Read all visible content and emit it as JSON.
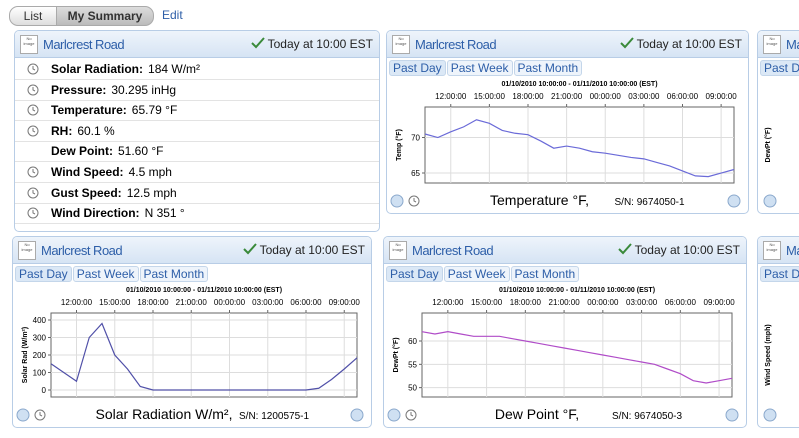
{
  "nav": {
    "tabs": [
      "List",
      "My Summary"
    ],
    "edit": "Edit"
  },
  "summary": {
    "title": "Marlcrest Road",
    "icon": "No image",
    "time": "Today at 10:00 EST",
    "rows": [
      {
        "label": "Solar Radiation:",
        "value": "184 W/m²"
      },
      {
        "label": "Pressure:",
        "value": "30.295 inHg"
      },
      {
        "label": "Temperature:",
        "value": "65.79 °F"
      },
      {
        "label": "RH:",
        "value": "60.1 %"
      },
      {
        "label": "Dew Point:",
        "value": "51.60 °F"
      },
      {
        "label": "Wind Speed:",
        "value": "4.5 mph"
      },
      {
        "label": "Gust Speed:",
        "value": "12.5 mph"
      },
      {
        "label": "Wind Direction:",
        "value": "N 351 °"
      }
    ]
  },
  "charts": [
    {
      "title": "Marlcrest Road",
      "icon": "No image",
      "time": "Today at 10:00 EST",
      "tabs": [
        "Past Day",
        "Past Week",
        "Past Month"
      ],
      "caption": "Temperature °F,",
      "serial": "S/N: 9674050-1",
      "chart_data": {
        "type": "line",
        "title": "01/10/2010 10:00:00  -  01/11/2010 10:00:00 (EST)",
        "ylabel": "Temp (°F)",
        "color": "#6a6ad8",
        "grid": true,
        "x": [
          0,
          1,
          2,
          3,
          4,
          5,
          6,
          7,
          8,
          9,
          10,
          11,
          12,
          13,
          14,
          15,
          16,
          17,
          18,
          19,
          20,
          21,
          22,
          23,
          24
        ],
        "values": [
          70.5,
          70,
          70.8,
          71.5,
          72.5,
          72,
          71,
          70.6,
          70.4,
          69.5,
          68.5,
          68.8,
          68.5,
          68,
          67.8,
          67.5,
          67.2,
          67,
          66.5,
          66,
          65.3,
          64.6,
          64.5,
          65,
          65.5
        ],
        "xlim": [
          0,
          24
        ],
        "xticks": [
          {
            "value": 2,
            "label": "12:00:00"
          },
          {
            "value": 5,
            "label": "15:00:00"
          },
          {
            "value": 8,
            "label": "18:00:00"
          },
          {
            "value": 11,
            "label": "21:00:00"
          },
          {
            "value": 14,
            "label": "00:00:00"
          },
          {
            "value": 17,
            "label": "03:00:00"
          },
          {
            "value": 20,
            "label": "06:00:00"
          },
          {
            "value": 23,
            "label": "09:00:00"
          }
        ],
        "ylim": [
          63.6,
          74.3
        ],
        "yticks": [
          65,
          70
        ]
      }
    },
    {
      "title": "Marlcrest Road",
      "icon": "No image",
      "time": "Today at 10:00 EST",
      "tabs": [
        "Past Day",
        "Past Week",
        "Past Month"
      ],
      "caption": "Solar Radiation W/m²,",
      "serial": "S/N: 1200575-1",
      "chart_data": {
        "type": "line",
        "title": "01/10/2010 10:00:00  -  01/11/2010 10:00:00 (EST)",
        "ylabel": "Solar Rad (W/m²)",
        "color": "#5050a8",
        "grid": true,
        "x": [
          0,
          1,
          2,
          3,
          4,
          5,
          6,
          7,
          8,
          9,
          10,
          11,
          12,
          13,
          14,
          15,
          16,
          17,
          18,
          19,
          20,
          21,
          22,
          23,
          24
        ],
        "values": [
          150,
          100,
          50,
          300,
          380,
          200,
          120,
          20,
          0,
          0,
          0,
          0,
          0,
          0,
          0,
          0,
          0,
          0,
          0,
          0,
          0,
          10,
          60,
          120,
          184
        ],
        "xlim": [
          0,
          24
        ],
        "xticks": [
          {
            "value": 2,
            "label": "12:00:00"
          },
          {
            "value": 5,
            "label": "15:00:00"
          },
          {
            "value": 8,
            "label": "18:00:00"
          },
          {
            "value": 11,
            "label": "21:00:00"
          },
          {
            "value": 14,
            "label": "00:00:00"
          },
          {
            "value": 17,
            "label": "03:00:00"
          },
          {
            "value": 20,
            "label": "06:00:00"
          },
          {
            "value": 23,
            "label": "09:00:00"
          }
        ],
        "ylim": [
          -40,
          440
        ],
        "yticks": [
          0,
          100,
          200,
          300,
          400
        ]
      }
    },
    {
      "title": "Marlcrest Road",
      "icon": "No image",
      "time": "Today at 10:00 EST",
      "tabs": [
        "Past Day",
        "Past Week",
        "Past Month"
      ],
      "caption": "Dew Point °F,",
      "serial": "S/N: 9674050-3",
      "chart_data": {
        "type": "line",
        "title": "01/10/2010 10:00:00  -  01/11/2010 10:00:00 (EST)",
        "ylabel": "DewPt (°F)",
        "color": "#b04cc8",
        "grid": true,
        "x": [
          0,
          1,
          2,
          3,
          4,
          5,
          6,
          7,
          8,
          9,
          10,
          11,
          12,
          13,
          14,
          15,
          16,
          17,
          18,
          19,
          20,
          21,
          22,
          23,
          24
        ],
        "values": [
          62,
          61.5,
          62,
          61.5,
          61,
          61,
          61,
          60.5,
          60,
          59.5,
          59,
          58.5,
          58,
          57.5,
          57,
          56.5,
          56,
          55.5,
          55,
          54,
          53,
          51.5,
          51,
          51.5,
          52
        ],
        "xlim": [
          0,
          24
        ],
        "xticks": [
          {
            "value": 2,
            "label": "12:00:00"
          },
          {
            "value": 5,
            "label": "15:00:00"
          },
          {
            "value": 8,
            "label": "18:00:00"
          },
          {
            "value": 11,
            "label": "21:00:00"
          },
          {
            "value": 14,
            "label": "00:00:00"
          },
          {
            "value": 17,
            "label": "03:00:00"
          },
          {
            "value": 20,
            "label": "06:00:00"
          },
          {
            "value": 23,
            "label": "09:00:00"
          }
        ],
        "ylim": [
          48,
          66
        ],
        "yticks": [
          50,
          55,
          60
        ]
      }
    }
  ],
  "partial": [
    {
      "title": "Marlcrest Road",
      "icon": "No image",
      "tab": "Past Day",
      "ylabel": "DewPt (°F)"
    },
    {
      "title": "Marlcrest Road",
      "icon": "No image",
      "tab": "Past Day",
      "ylabel": "Wind Speed (mph)"
    }
  ]
}
